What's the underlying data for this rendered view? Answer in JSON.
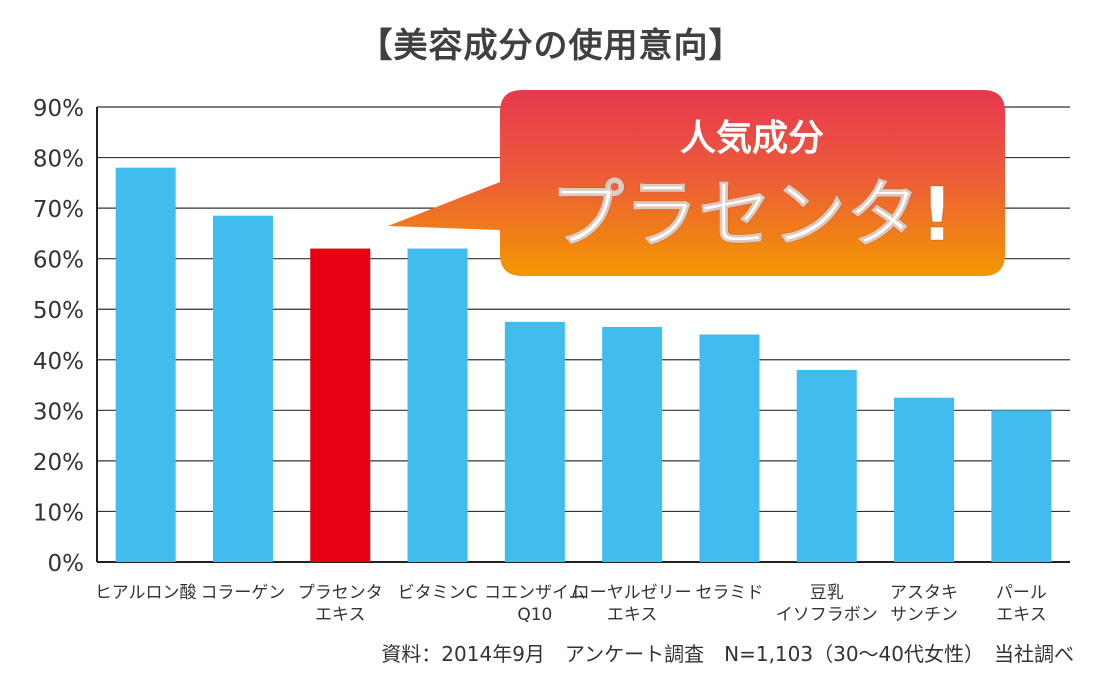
{
  "title": "【美容成分の使用意向】",
  "source": "資料：2014年9月　アンケート調査　N=1,103（30〜40代女性）　当社調べ",
  "colors": {
    "bar": "#41BCEE",
    "highlight": "#E60012",
    "callout_top": "#E8384F",
    "callout_bottom": "#F39800",
    "grid": "#333333",
    "text": "#333333"
  },
  "callout": {
    "line1": "人気成分",
    "line2": "プラセンタ!"
  },
  "chart_data": {
    "type": "bar",
    "categories": [
      [
        "ヒアルロン酸"
      ],
      [
        "コラーゲン"
      ],
      [
        "プラセンタ",
        "エキス"
      ],
      [
        "ビタミンC"
      ],
      [
        "コエンザイム",
        "Q10"
      ],
      [
        "ローヤルゼリー",
        "エキス"
      ],
      [
        "セラミド"
      ],
      [
        "豆乳",
        "イソフラボン"
      ],
      [
        "アスタキ",
        "サンチン"
      ],
      [
        "パール",
        "エキス"
      ]
    ],
    "values": [
      78,
      68.5,
      62,
      62,
      47.5,
      46.5,
      45,
      38,
      32.5,
      30
    ],
    "highlight_index": 2,
    "ylim": [
      0,
      90
    ],
    "yticks": [
      "0%",
      "10%",
      "20%",
      "30%",
      "40%",
      "50%",
      "60%",
      "70%",
      "80%",
      "90%"
    ],
    "grid": true
  }
}
